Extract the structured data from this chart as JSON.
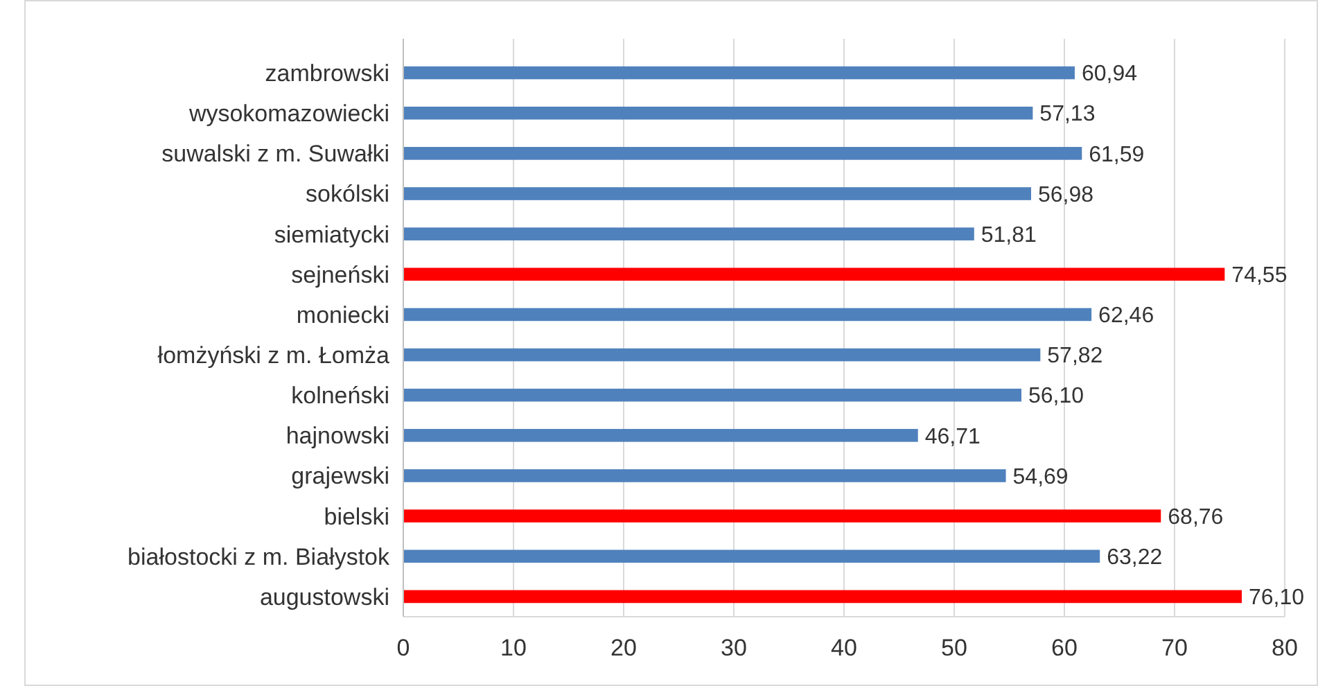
{
  "chart_data": {
    "type": "bar",
    "orientation": "horizontal",
    "categories": [
      "zambrowski",
      "wysokomazowiecki",
      "suwalski z m. Suwałki",
      "sokólski",
      "siemiatycki",
      "sejneński",
      "moniecki",
      "łomżyński z m. Łomża",
      "kolneński",
      "hajnowski",
      "grajewski",
      "bielski",
      "białostocki z m. Białystok",
      "augustowski"
    ],
    "values": [
      60.94,
      57.13,
      61.59,
      56.98,
      51.81,
      74.55,
      62.46,
      57.82,
      56.1,
      46.71,
      54.69,
      68.76,
      63.22,
      76.1
    ],
    "value_labels": [
      "60,94",
      "57,13",
      "61,59",
      "56,98",
      "51,81",
      "74,55",
      "62,46",
      "57,82",
      "56,10",
      "46,71",
      "54,69",
      "68,76",
      "63,22",
      "76,10"
    ],
    "colors": [
      "#4f81bd",
      "#4f81bd",
      "#4f81bd",
      "#4f81bd",
      "#4f81bd",
      "#ff0000",
      "#4f81bd",
      "#4f81bd",
      "#4f81bd",
      "#4f81bd",
      "#4f81bd",
      "#ff0000",
      "#4f81bd",
      "#ff0000"
    ],
    "xlim": [
      0,
      80
    ],
    "xticks": [
      0,
      10,
      20,
      30,
      40,
      50,
      60,
      70,
      80
    ],
    "grid": "x"
  }
}
